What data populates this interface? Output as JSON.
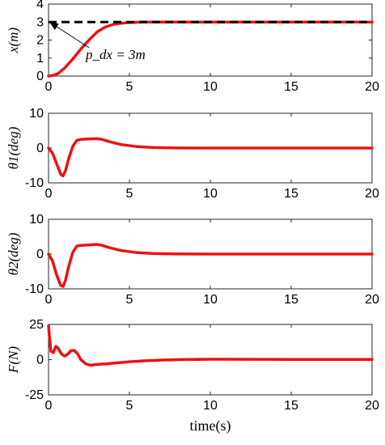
{
  "chart_data": [
    {
      "type": "line",
      "ylabel": "x(m)",
      "xlim": [
        0,
        20
      ],
      "ylim": [
        0,
        4
      ],
      "xticks": [
        "0",
        "5",
        "10",
        "15",
        "20"
      ],
      "yticks": [
        {
          "v": 0,
          "label": "0"
        },
        {
          "v": 1,
          "label": "1"
        },
        {
          "v": 2,
          "label": "2"
        },
        {
          "v": 3,
          "label": "3"
        },
        {
          "v": 4,
          "label": "4"
        }
      ],
      "series": [
        {
          "color": "#ee1111",
          "x": [
            0,
            0.3,
            0.6,
            1.0,
            1.5,
            2.0,
            2.5,
            3.0,
            3.5,
            4.0,
            4.5,
            5.0,
            5.5,
            6.0,
            7.0,
            8.0,
            10.0,
            15.0,
            20.0
          ],
          "y": [
            0,
            0.04,
            0.15,
            0.45,
            0.95,
            1.5,
            2.0,
            2.45,
            2.72,
            2.87,
            2.94,
            2.97,
            2.99,
            3.0,
            3.0,
            3.0,
            3.0,
            3.0,
            3.0
          ]
        },
        {
          "color": "#000000",
          "dashed": true,
          "x": [
            0,
            20
          ],
          "y": [
            3,
            3
          ]
        }
      ],
      "annotation": {
        "text": "p_dx = 3m",
        "target": [
          0.05,
          3.0
        ],
        "label_at": [
          2.3,
          0.95
        ]
      }
    },
    {
      "type": "line",
      "ylabel": "θ1(deg)",
      "xlim": [
        0,
        20
      ],
      "ylim": [
        -10,
        10
      ],
      "xticks": [
        "0",
        "5",
        "10",
        "15",
        "20"
      ],
      "yticks": [
        {
          "v": -10,
          "label": "-10"
        },
        {
          "v": 0,
          "label": "0"
        },
        {
          "v": 10,
          "label": "10"
        }
      ],
      "series": [
        {
          "color": "#ee1111",
          "x": [
            0,
            0.25,
            0.5,
            0.75,
            0.9,
            1.05,
            1.25,
            1.5,
            1.75,
            2.0,
            2.5,
            3.0,
            3.3,
            3.8,
            4.5,
            5.5,
            6.5,
            8.0,
            10.0,
            20.0
          ],
          "y": [
            0,
            -1.5,
            -4.5,
            -7.5,
            -8.0,
            -6.5,
            -3.0,
            0.5,
            2.2,
            2.5,
            2.6,
            2.7,
            2.5,
            1.8,
            1.0,
            0.4,
            0.15,
            0.02,
            0.0,
            0.0
          ]
        }
      ]
    },
    {
      "type": "line",
      "ylabel": "θ2(deg)",
      "xlim": [
        0,
        20
      ],
      "ylim": [
        -10,
        10
      ],
      "xticks": [
        "0",
        "5",
        "10",
        "15",
        "20"
      ],
      "yticks": [
        {
          "v": -10,
          "label": "-10"
        },
        {
          "v": 0,
          "label": "0"
        },
        {
          "v": 10,
          "label": "10"
        }
      ],
      "series": [
        {
          "color": "#ee1111",
          "x": [
            0,
            0.25,
            0.5,
            0.75,
            0.9,
            1.05,
            1.25,
            1.5,
            1.75,
            2.0,
            2.5,
            3.0,
            3.3,
            3.8,
            4.5,
            5.5,
            6.5,
            8.0,
            10.0,
            20.0
          ],
          "y": [
            0,
            -2.0,
            -6.0,
            -9.0,
            -9.3,
            -7.5,
            -3.5,
            0.5,
            2.3,
            2.5,
            2.6,
            2.8,
            2.5,
            1.8,
            1.0,
            0.4,
            0.15,
            0.02,
            0.0,
            0.0
          ]
        }
      ]
    },
    {
      "type": "line",
      "ylabel": "F(N)",
      "xlabel": "time(s)",
      "xlim": [
        0,
        20
      ],
      "ylim": [
        -25,
        25
      ],
      "xticks": [
        "0",
        "5",
        "10",
        "15",
        "20"
      ],
      "yticks": [
        {
          "v": -25,
          "label": "-25"
        },
        {
          "v": 0,
          "label": "0"
        },
        {
          "v": 25,
          "label": "25"
        }
      ],
      "series": [
        {
          "color": "#ee1111",
          "x": [
            0,
            0.05,
            0.15,
            0.3,
            0.45,
            0.6,
            0.8,
            1.0,
            1.2,
            1.4,
            1.6,
            1.8,
            2.0,
            2.3,
            2.6,
            2.9,
            3.2,
            3.6,
            4.0,
            4.5,
            5.0,
            6.0,
            7.0,
            8.0,
            10.0,
            15.0,
            20.0
          ],
          "y": [
            24,
            17,
            6,
            5,
            9.5,
            8,
            4,
            2.5,
            4,
            6.5,
            6.5,
            4,
            0,
            -3,
            -4,
            -3.5,
            -3.2,
            -3.0,
            -2.5,
            -2.0,
            -1.5,
            -0.8,
            -0.3,
            0.0,
            0.3,
            0.2,
            0.2
          ]
        }
      ]
    }
  ]
}
